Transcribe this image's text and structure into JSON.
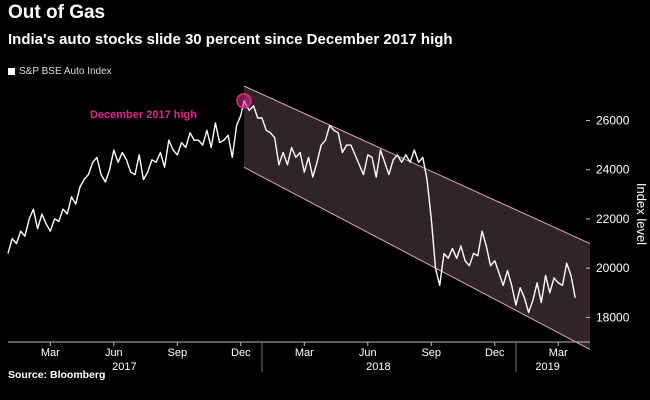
{
  "colors": {
    "background": "#000000",
    "line": "#ffffff",
    "channel_fill": "#3a2a30",
    "channel_edge": "#d8a8b8",
    "highlight": "#e0288c"
  },
  "chart_data": {
    "type": "line",
    "title": "Out of Gas",
    "subtitle": "India's auto stocks slide 30 percent since December 2017 high",
    "legend": [
      "S&P BSE Auto Index"
    ],
    "ylabel": "Index level",
    "ylim": [
      17000,
      27400
    ],
    "yticks": [
      18000,
      20000,
      22000,
      24000,
      26000
    ],
    "xlim": [
      0,
      27.5
    ],
    "x_unit": "months since January 2017",
    "xticks": [
      {
        "label": "Mar",
        "x": 2
      },
      {
        "label": "Jun",
        "x": 5
      },
      {
        "label": "Sep",
        "x": 8
      },
      {
        "label": "Dec",
        "x": 11
      },
      {
        "label": "Mar",
        "x": 14
      },
      {
        "label": "Jun",
        "x": 17
      },
      {
        "label": "Sep",
        "x": 20
      },
      {
        "label": "Dec",
        "x": 23
      },
      {
        "label": "Mar",
        "x": 26
      }
    ],
    "year_labels": [
      {
        "label": "2017",
        "x": 5.5
      },
      {
        "label": "2018",
        "x": 17.5
      },
      {
        "label": "2019",
        "x": 25.5
      }
    ],
    "annotation": {
      "label": "December 2017 high",
      "x": 11.15,
      "y": 26800
    },
    "channel": {
      "x_start": 11.15,
      "x_end": 27.5,
      "top_start": 27400,
      "top_end": 21000,
      "bottom_start": 24100,
      "bottom_end": 16700
    },
    "series": [
      {
        "name": "S&P BSE Auto Index",
        "x": [
          0,
          0.2,
          0.4,
          0.6,
          0.8,
          1.0,
          1.2,
          1.4,
          1.6,
          1.8,
          2.0,
          2.2,
          2.4,
          2.6,
          2.8,
          3.0,
          3.2,
          3.4,
          3.6,
          3.8,
          4.0,
          4.2,
          4.4,
          4.6,
          4.8,
          5.0,
          5.2,
          5.4,
          5.6,
          5.8,
          6.0,
          6.2,
          6.4,
          6.6,
          6.8,
          7.0,
          7.2,
          7.4,
          7.6,
          7.8,
          8.0,
          8.2,
          8.4,
          8.6,
          8.8,
          9.0,
          9.2,
          9.4,
          9.6,
          9.8,
          10.0,
          10.2,
          10.4,
          10.6,
          10.8,
          11.0,
          11.15,
          11.4,
          11.6,
          11.8,
          12.0,
          12.2,
          12.4,
          12.6,
          12.8,
          13.0,
          13.2,
          13.4,
          13.6,
          13.8,
          14.0,
          14.2,
          14.4,
          14.6,
          14.8,
          15.0,
          15.2,
          15.4,
          15.6,
          15.8,
          16.0,
          16.2,
          16.4,
          16.6,
          16.8,
          17.0,
          17.2,
          17.4,
          17.6,
          17.8,
          18.0,
          18.2,
          18.4,
          18.6,
          18.8,
          19.0,
          19.2,
          19.4,
          19.6,
          19.8,
          20.0,
          20.2,
          20.4,
          20.6,
          20.8,
          21.0,
          21.2,
          21.4,
          21.6,
          21.8,
          22.0,
          22.2,
          22.4,
          22.6,
          22.8,
          23.0,
          23.2,
          23.4,
          23.6,
          23.8,
          24.0,
          24.2,
          24.4,
          24.6,
          24.8,
          25.0,
          25.2,
          25.4,
          25.6,
          25.8,
          26.0,
          26.2,
          26.4,
          26.6,
          26.8
        ],
        "values": [
          20600,
          21200,
          21000,
          21500,
          21300,
          22000,
          22400,
          21600,
          22200,
          21800,
          21500,
          22000,
          21900,
          22400,
          22200,
          22900,
          22600,
          23300,
          23600,
          23800,
          24300,
          24500,
          23800,
          23500,
          24000,
          24800,
          24300,
          24700,
          24400,
          23900,
          23800,
          24600,
          23600,
          23900,
          24400,
          24300,
          24700,
          24100,
          25200,
          24800,
          24600,
          25100,
          24900,
          25500,
          25200,
          25200,
          25000,
          25600,
          24900,
          25900,
          25100,
          25200,
          25400,
          24500,
          25800,
          26200,
          26800,
          26400,
          26600,
          26100,
          26100,
          25600,
          25500,
          25300,
          24200,
          24700,
          24200,
          24900,
          24500,
          24700,
          23900,
          24500,
          23700,
          24300,
          25000,
          25200,
          25800,
          25600,
          25500,
          24700,
          25000,
          25000,
          24600,
          24200,
          23800,
          24600,
          24500,
          23700,
          24800,
          24300,
          23800,
          24400,
          24600,
          24300,
          24600,
          24300,
          24800,
          24300,
          24500,
          23600,
          22000,
          20000,
          19300,
          20600,
          20400,
          20800,
          20400,
          20900,
          20300,
          20100,
          20600,
          20500,
          21500,
          20900,
          20100,
          20300,
          19800,
          19300,
          19900,
          19300,
          18500,
          19200,
          18800,
          18200,
          18700,
          19400,
          18600,
          19700,
          19000,
          19600,
          19400,
          19300,
          20200,
          19700,
          18800
        ]
      }
    ]
  },
  "source": "Source: Bloomberg"
}
